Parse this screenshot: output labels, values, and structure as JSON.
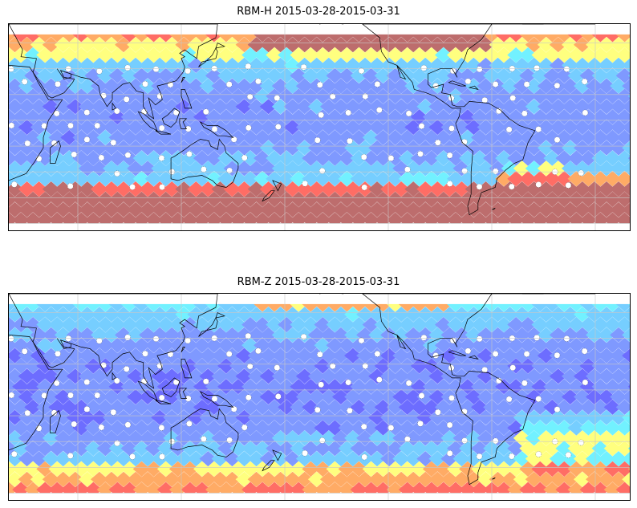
{
  "panels": [
    {
      "title": "RBM-H 2015-03-28-2015-03-31",
      "variant": "H"
    },
    {
      "title": "RBM-Z 2015-03-28-2015-03-31",
      "variant": "Z"
    }
  ],
  "map": {
    "projection": "plate-carree",
    "gridlines": true,
    "coastline_color": "#000000",
    "colormap": [
      "#5a5aff",
      "#6e8cff",
      "#64c8ff",
      "#5ff0ff",
      "#ffff6e",
      "#ffa050",
      "#ff5a50",
      "#b45a5a"
    ],
    "missing_color": "#ffffff"
  }
}
